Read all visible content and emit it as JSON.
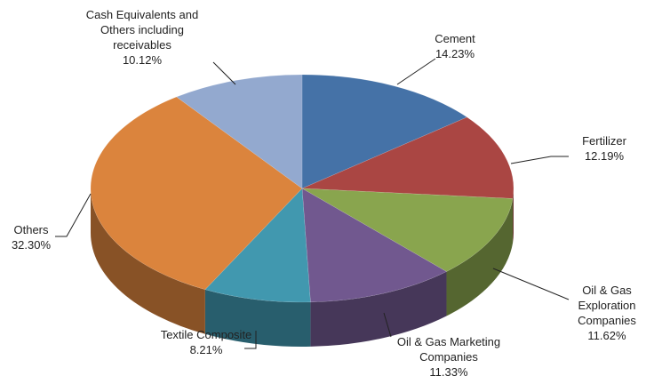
{
  "chart_data": {
    "type": "pie3d",
    "categories": [
      "Cement",
      "Fertilizer",
      "Oil & Gas Exploration Companies",
      "Oil & Gas Marketing Companies",
      "Textile Composite",
      "Others",
      "Cash Equivalents and Others including receivables"
    ],
    "values": [
      14.23,
      12.19,
      11.62,
      11.33,
      8.21,
      32.3,
      10.12
    ],
    "value_labels": [
      "14.23%",
      "12.19%",
      "11.62%",
      "11.33%",
      "8.21%",
      "32.30%",
      "10.12%"
    ],
    "colors": [
      "#4572a7",
      "#aa4643",
      "#89a54e",
      "#71588f",
      "#4198af",
      "#db843d",
      "#93a9cf"
    ]
  }
}
